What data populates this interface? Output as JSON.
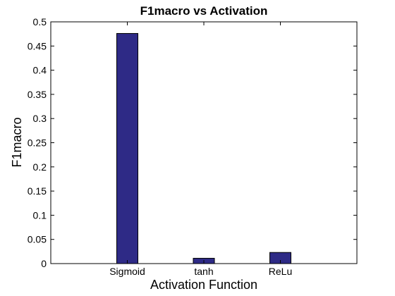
{
  "chart_data": {
    "type": "bar",
    "title": "F1macro vs Activation",
    "xlabel": "Activation Function",
    "ylabel": "F1macro",
    "categories": [
      "Sigmoid",
      "tanh",
      "ReLu"
    ],
    "values": [
      0.476,
      0.011,
      0.023
    ],
    "ylim": [
      0,
      0.5
    ],
    "yticks": [
      "0",
      "0.05",
      "0.1",
      "0.15",
      "0.2",
      "0.25",
      "0.3",
      "0.35",
      "0.4",
      "0.45",
      "0.5"
    ],
    "grid": false,
    "bar_color": "#2e2a86",
    "bar_edge_color": "#000000"
  }
}
